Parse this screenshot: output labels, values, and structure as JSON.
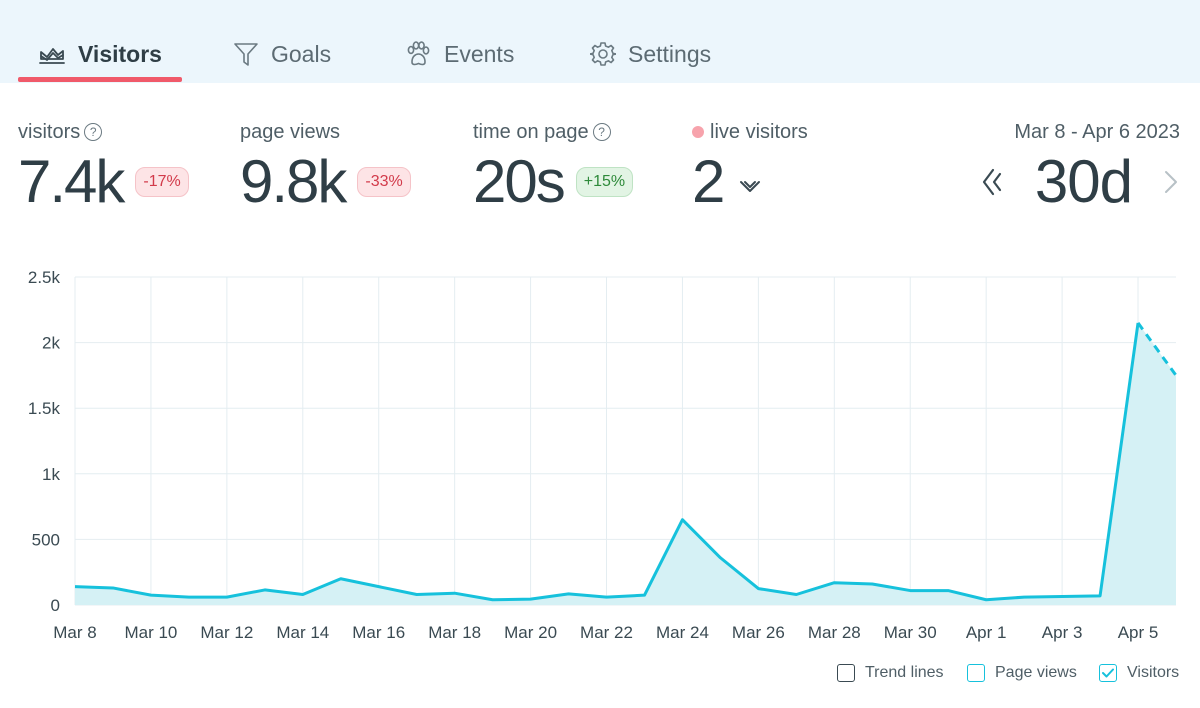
{
  "tabs": [
    {
      "label": "Visitors",
      "active": true
    },
    {
      "label": "Goals",
      "active": false
    },
    {
      "label": "Events",
      "active": false
    },
    {
      "label": "Settings",
      "active": false
    }
  ],
  "stats": {
    "visitors": {
      "label": "visitors",
      "value": "7.4k",
      "change": "-17%"
    },
    "page_views": {
      "label": "page views",
      "value": "9.8k",
      "change": "-33%"
    },
    "time_on_page": {
      "label": "time on page",
      "value": "20s",
      "change": "+15%"
    },
    "live_visitors": {
      "label": "live visitors",
      "value": "2"
    }
  },
  "help_glyph": "?",
  "date_range": {
    "label": "Mar 8 - Apr 6 2023",
    "value": "30d"
  },
  "legend": {
    "trend_lines": {
      "label": "Trend lines",
      "checked": false
    },
    "page_views": {
      "label": "Page views",
      "checked": false
    },
    "visitors": {
      "label": "Visitors",
      "checked": true
    }
  },
  "colors": {
    "accent": "#f05a6a",
    "line": "#16c1dc",
    "area": "#d5f1f5",
    "tab_bg": "#ecf6fc"
  },
  "chart_data": {
    "type": "area",
    "series_name": "Visitors",
    "x": [
      "Mar 8",
      "Mar 9",
      "Mar 10",
      "Mar 11",
      "Mar 12",
      "Mar 13",
      "Mar 14",
      "Mar 15",
      "Mar 16",
      "Mar 17",
      "Mar 18",
      "Mar 19",
      "Mar 20",
      "Mar 21",
      "Mar 22",
      "Mar 23",
      "Mar 24",
      "Mar 25",
      "Mar 26",
      "Mar 27",
      "Mar 28",
      "Mar 29",
      "Mar 30",
      "Mar 31",
      "Apr 1",
      "Apr 2",
      "Apr 3",
      "Apr 4",
      "Apr 5",
      "Apr 6"
    ],
    "values": [
      140,
      130,
      75,
      60,
      60,
      115,
      80,
      200,
      140,
      80,
      90,
      40,
      45,
      85,
      60,
      75,
      650,
      360,
      125,
      80,
      170,
      160,
      110,
      110,
      40,
      60,
      65,
      70,
      2150,
      1750
    ],
    "dashed_last_segment": true,
    "x_tick_labels": [
      "Mar 8",
      "Mar 10",
      "Mar 12",
      "Mar 14",
      "Mar 16",
      "Mar 18",
      "Mar 20",
      "Mar 22",
      "Mar 24",
      "Mar 26",
      "Mar 28",
      "Mar 30",
      "Apr 1",
      "Apr 3",
      "Apr 5"
    ],
    "y_ticks": [
      0,
      500,
      1000,
      1500,
      2000,
      2500
    ],
    "y_tick_labels": [
      "0",
      "500",
      "1k",
      "1.5k",
      "2k",
      "2.5k"
    ],
    "ylim": [
      0,
      2500
    ],
    "grid": true
  }
}
